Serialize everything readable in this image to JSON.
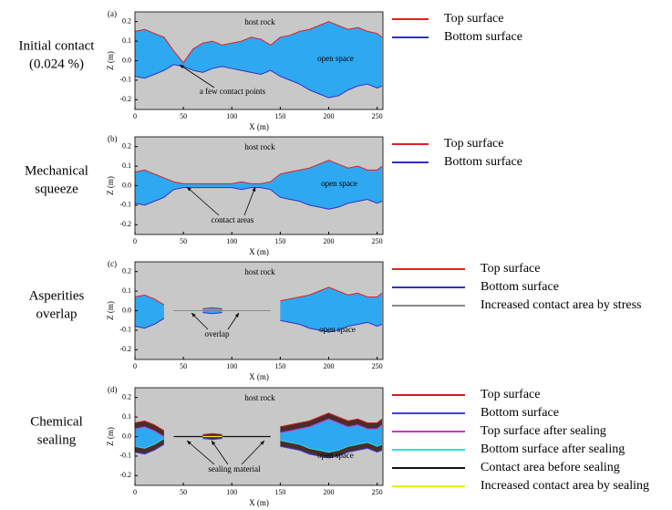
{
  "chart_data": [
    {
      "type": "area",
      "panel": "(a)",
      "side_label": [
        "Initial contact",
        "(0.024 %)"
      ],
      "xlabel": "X (m)",
      "ylabel": "Z (m)",
      "annotations": [
        "host rock",
        "open space",
        "a few contact points"
      ],
      "x": [
        0,
        10,
        20,
        30,
        40,
        50,
        60,
        70,
        80,
        90,
        100,
        110,
        120,
        130,
        140,
        150,
        160,
        170,
        180,
        190,
        200,
        210,
        220,
        230,
        240,
        250,
        255
      ],
      "xlim": [
        0,
        256
      ],
      "ylim": [
        -0.25,
        0.25
      ],
      "xticks": [
        0,
        50,
        100,
        150,
        200,
        250
      ],
      "yticks": [
        -0.2,
        -0.1,
        {
          "value": 0,
          "label": "0.0"
        },
        0.1,
        0.2
      ],
      "series": [
        {
          "name": "Top surface",
          "color": "#e02020",
          "values": [
            0.15,
            0.16,
            0.14,
            0.12,
            0.05,
            -0.01,
            0.06,
            0.09,
            0.1,
            0.08,
            0.09,
            0.1,
            0.12,
            0.11,
            0.08,
            0.12,
            0.13,
            0.15,
            0.16,
            0.18,
            0.2,
            0.18,
            0.16,
            0.17,
            0.15,
            0.14,
            0.12
          ]
        },
        {
          "name": "Bottom surface",
          "color": "#3030c8",
          "values": [
            -0.08,
            -0.09,
            -0.07,
            -0.05,
            -0.02,
            -0.03,
            -0.05,
            -0.06,
            -0.04,
            -0.03,
            -0.04,
            -0.05,
            -0.06,
            -0.07,
            -0.05,
            -0.08,
            -0.1,
            -0.12,
            -0.15,
            -0.17,
            -0.19,
            -0.18,
            -0.15,
            -0.13,
            -0.12,
            -0.14,
            -0.13
          ]
        }
      ]
    },
    {
      "type": "area",
      "panel": "(b)",
      "side_label": [
        "Mechanical",
        "squeeze"
      ],
      "xlabel": "X (m)",
      "ylabel": "Z (m)",
      "annotations": [
        "host rock",
        "open space",
        "contact areas"
      ],
      "x": [
        0,
        10,
        20,
        30,
        40,
        50,
        60,
        70,
        80,
        90,
        100,
        110,
        120,
        130,
        140,
        150,
        160,
        170,
        180,
        190,
        200,
        210,
        220,
        230,
        240,
        250,
        255
      ],
      "xlim": [
        0,
        256
      ],
      "ylim": [
        -0.25,
        0.25
      ],
      "xticks": [
        0,
        50,
        100,
        150,
        200,
        250
      ],
      "yticks": [
        -0.2,
        -0.1,
        {
          "value": 0,
          "label": "0.0"
        },
        0.1,
        0.2
      ],
      "series": [
        {
          "name": "Top surface",
          "color": "#e02020",
          "values": [
            0.07,
            0.08,
            0.06,
            0.04,
            0.02,
            0.01,
            0.01,
            0.01,
            0.01,
            0.01,
            0.01,
            0.02,
            0.01,
            0.01,
            0.02,
            0.06,
            0.07,
            0.08,
            0.09,
            0.11,
            0.13,
            0.11,
            0.09,
            0.1,
            0.08,
            0.08,
            0.1
          ]
        },
        {
          "name": "Bottom surface",
          "color": "#3030c8",
          "values": [
            -0.09,
            -0.1,
            -0.08,
            -0.06,
            -0.02,
            -0.01,
            -0.01,
            -0.01,
            -0.01,
            -0.01,
            -0.01,
            -0.02,
            -0.01,
            -0.01,
            -0.02,
            -0.06,
            -0.07,
            -0.08,
            -0.1,
            -0.11,
            -0.12,
            -0.11,
            -0.09,
            -0.08,
            -0.07,
            -0.09,
            -0.08
          ]
        }
      ]
    },
    {
      "type": "area",
      "panel": "(c)",
      "side_label": [
        "Asperities",
        "overlap"
      ],
      "xlabel": "X (m)",
      "ylabel": "Z (m)",
      "annotations": [
        "host rock",
        "open space",
        "overlap"
      ],
      "x": [
        0,
        10,
        20,
        30,
        40,
        50,
        60,
        70,
        80,
        90,
        100,
        110,
        120,
        130,
        140,
        150,
        160,
        170,
        180,
        190,
        200,
        210,
        220,
        230,
        240,
        250,
        255
      ],
      "xlim": [
        0,
        256
      ],
      "ylim": [
        -0.25,
        0.25
      ],
      "xticks": [
        0,
        50,
        100,
        150,
        200,
        250
      ],
      "yticks": [
        -0.2,
        -0.1,
        {
          "value": 0,
          "label": "0.0"
        },
        0.1,
        0.2
      ],
      "series": [
        {
          "name": "Top surface",
          "color": "#e02020",
          "values": [
            0.07,
            0.08,
            0.06,
            0.03,
            null,
            null,
            null,
            0.01,
            0.015,
            0.01,
            null,
            null,
            null,
            null,
            null,
            0.05,
            0.06,
            0.07,
            0.08,
            0.1,
            0.12,
            0.1,
            0.08,
            0.09,
            0.07,
            0.07,
            0.09
          ]
        },
        {
          "name": "Bottom surface",
          "color": "#3030c8",
          "values": [
            -0.08,
            -0.09,
            -0.07,
            -0.04,
            null,
            null,
            null,
            -0.01,
            -0.015,
            -0.01,
            null,
            null,
            null,
            null,
            null,
            -0.05,
            -0.06,
            -0.07,
            -0.09,
            -0.1,
            -0.11,
            -0.1,
            -0.08,
            -0.07,
            -0.06,
            -0.08,
            -0.07
          ]
        },
        {
          "name": "Increased contact area by stress",
          "color": "#888888",
          "values": [
            null,
            null,
            null,
            null,
            0,
            0,
            0,
            0,
            0,
            0,
            0,
            0,
            0,
            0,
            0,
            null,
            null,
            null,
            null,
            null,
            null,
            null,
            null,
            null,
            null,
            null,
            null
          ]
        }
      ]
    },
    {
      "type": "area",
      "panel": "(d)",
      "side_label": [
        "Chemical",
        "sealing"
      ],
      "xlabel": "X (m)",
      "ylabel": "Z (m)",
      "annotations": [
        "host rock",
        "open space",
        "sealing material"
      ],
      "x": [
        0,
        10,
        20,
        30,
        40,
        50,
        60,
        70,
        80,
        90,
        100,
        110,
        120,
        130,
        140,
        150,
        160,
        170,
        180,
        190,
        200,
        210,
        220,
        230,
        240,
        250,
        255
      ],
      "xlim": [
        0,
        256
      ],
      "ylim": [
        -0.25,
        0.25
      ],
      "xticks": [
        0,
        50,
        100,
        150,
        200,
        250
      ],
      "yticks": [
        -0.2,
        -0.1,
        {
          "value": 0,
          "label": "0.0"
        },
        0.1,
        0.2
      ],
      "series": [
        {
          "name": "Top surface",
          "color": "#cc1f1f",
          "values": [
            0.07,
            0.08,
            0.06,
            0.03,
            null,
            null,
            null,
            0.01,
            0.015,
            0.01,
            null,
            null,
            null,
            null,
            null,
            0.05,
            0.06,
            0.07,
            0.08,
            0.1,
            0.12,
            0.1,
            0.08,
            0.09,
            0.07,
            0.07,
            0.09
          ]
        },
        {
          "name": "Bottom surface",
          "color": "#4040e0",
          "values": [
            -0.08,
            -0.09,
            -0.07,
            -0.04,
            null,
            null,
            null,
            -0.01,
            -0.015,
            -0.01,
            null,
            null,
            null,
            null,
            null,
            -0.05,
            -0.06,
            -0.07,
            -0.09,
            -0.1,
            -0.11,
            -0.1,
            -0.08,
            -0.07,
            -0.06,
            -0.08,
            -0.07
          ]
        },
        {
          "name": "Top surface after sealing",
          "color": "#cc33cc",
          "values": [
            0.04,
            0.05,
            0.03,
            0.0,
            null,
            null,
            null,
            null,
            null,
            null,
            null,
            null,
            null,
            null,
            null,
            0.02,
            0.03,
            0.04,
            0.05,
            0.07,
            0.09,
            0.07,
            0.05,
            0.06,
            0.04,
            0.04,
            0.06
          ]
        },
        {
          "name": "Bottom surface after sealing",
          "color": "#33dddd",
          "values": [
            -0.05,
            -0.06,
            -0.04,
            -0.01,
            null,
            null,
            null,
            null,
            null,
            null,
            null,
            null,
            null,
            null,
            null,
            -0.02,
            -0.03,
            -0.04,
            -0.06,
            -0.07,
            -0.08,
            -0.07,
            -0.05,
            -0.04,
            -0.03,
            -0.05,
            -0.04
          ]
        },
        {
          "name": "Contact area before sealing",
          "color": "#111111",
          "values": [
            null,
            null,
            null,
            null,
            0,
            0,
            0,
            0,
            0,
            0,
            0,
            0,
            0,
            0,
            0,
            null,
            null,
            null,
            null,
            null,
            null,
            null,
            null,
            null,
            null,
            null,
            null
          ]
        },
        {
          "name": "Increased contact area by sealing",
          "color": "#eeee00",
          "values": [
            null,
            null,
            null,
            null,
            null,
            null,
            null,
            0,
            0,
            0,
            null,
            null,
            null,
            null,
            null,
            null,
            null,
            null,
            null,
            null,
            null,
            null,
            null,
            null,
            null,
            null,
            null
          ]
        }
      ]
    }
  ]
}
